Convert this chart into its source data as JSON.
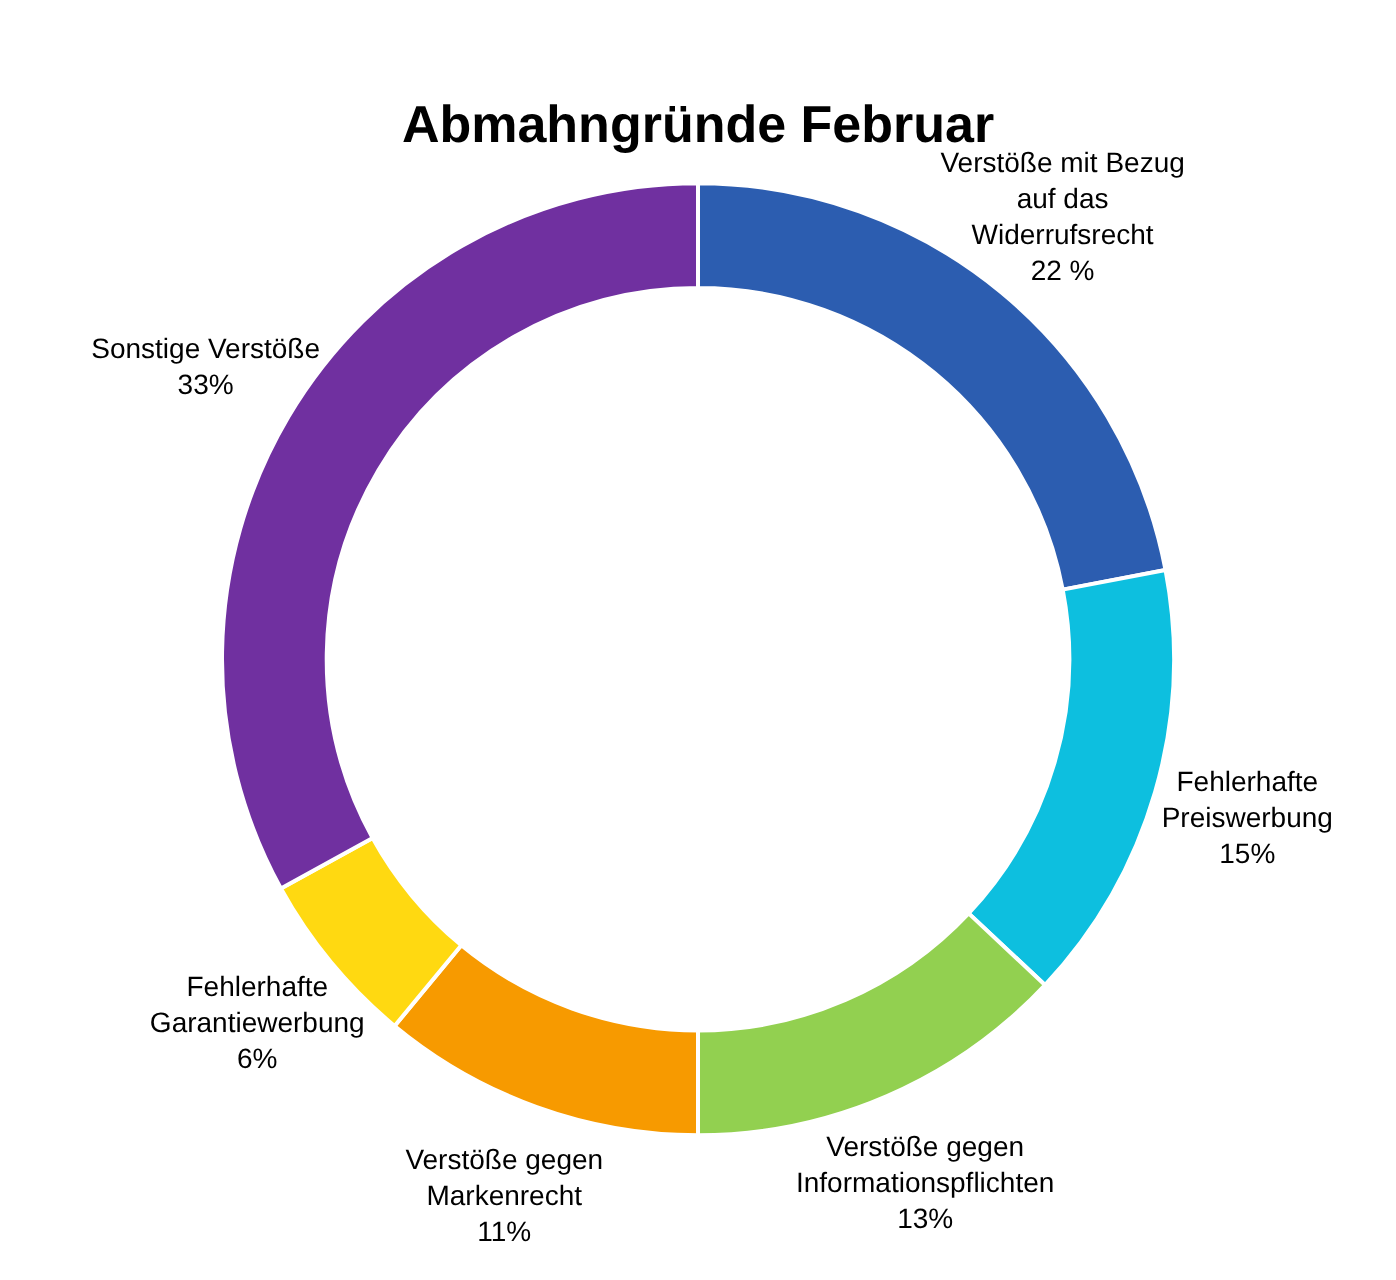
{
  "chart_data": {
    "type": "donut",
    "title": "Abmahngründe Februar",
    "categories": [
      "Verstöße mit Bezug auf das Widerrufsrecht",
      "Fehlerhafte Preiswerbung",
      "Verstöße gegen Informationspflichten",
      "Verstöße gegen Markenrecht",
      "Fehlerhafte Garantiewerbung",
      "Sonstige Verstöße"
    ],
    "values": [
      22,
      15,
      13,
      11,
      6,
      33
    ],
    "value_labels": [
      "22 %",
      "15%",
      "13%",
      "11%",
      "6%",
      "33%"
    ],
    "colors": [
      "#2c5db0",
      "#0dbfdf",
      "#92d050",
      "#f79a00",
      "#ffd911",
      "#7030a0"
    ],
    "legend": false
  }
}
